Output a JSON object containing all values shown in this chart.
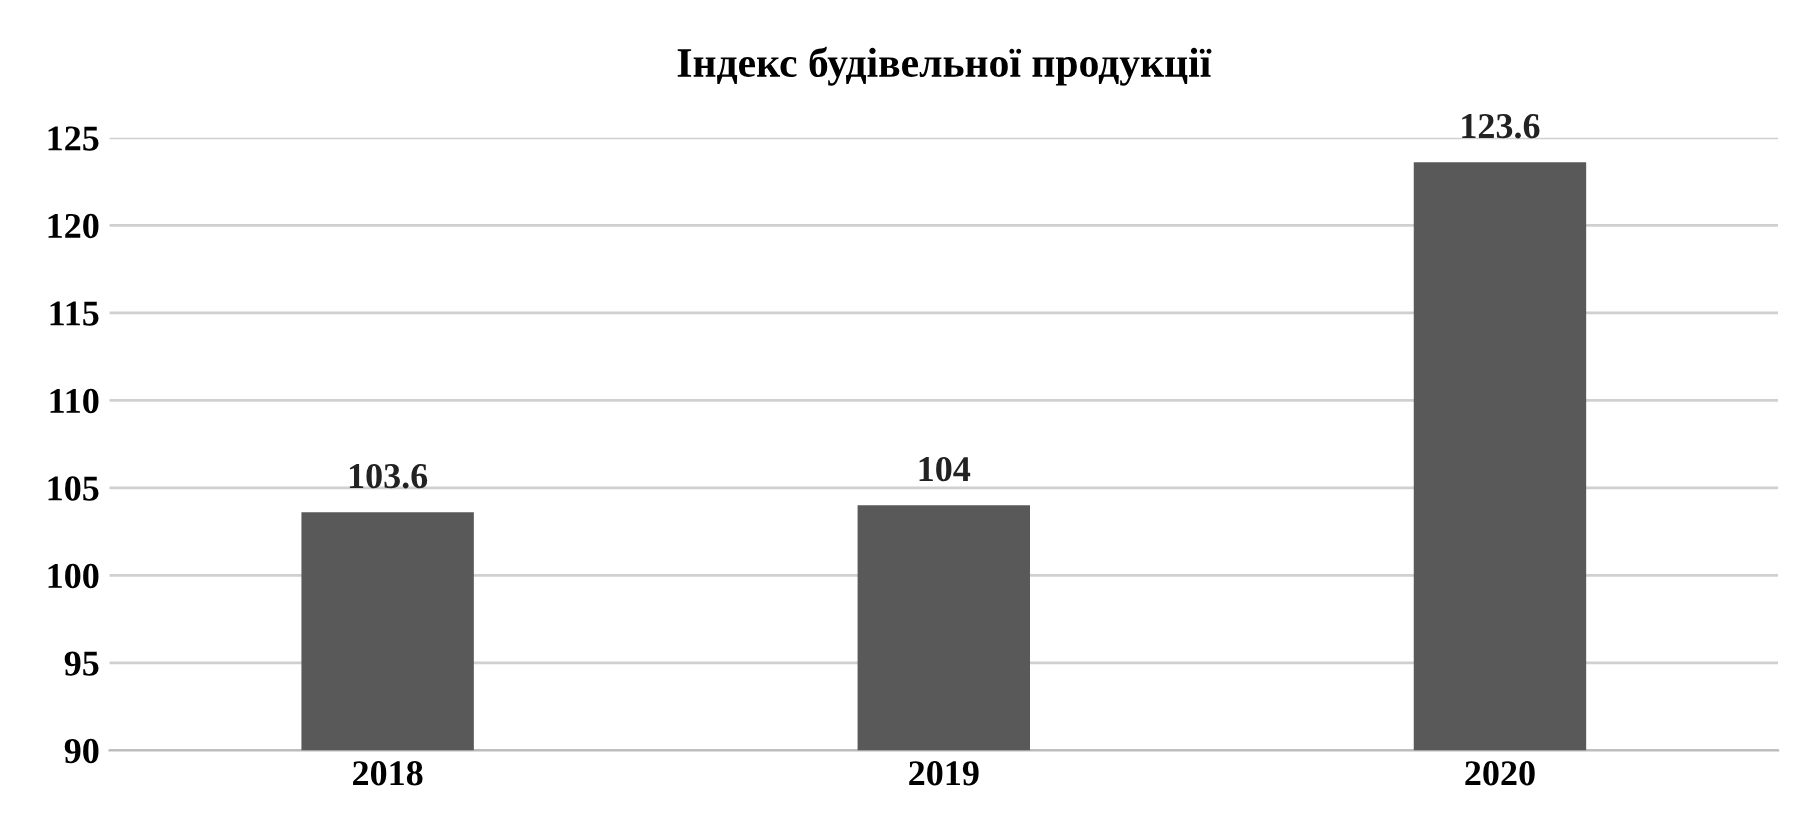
{
  "chart_data": {
    "type": "bar",
    "title": "Індекс будівельної продукції",
    "categories": [
      "2018",
      "2019",
      "2020"
    ],
    "series": [
      {
        "color": "#595959",
        "values": [
          103.6,
          104,
          123.6
        ]
      }
    ],
    "ylim": [
      90,
      125
    ],
    "yticks": [
      90,
      95,
      100,
      105,
      110,
      115,
      120,
      125
    ],
    "grid": "y",
    "data_labels": true
  }
}
